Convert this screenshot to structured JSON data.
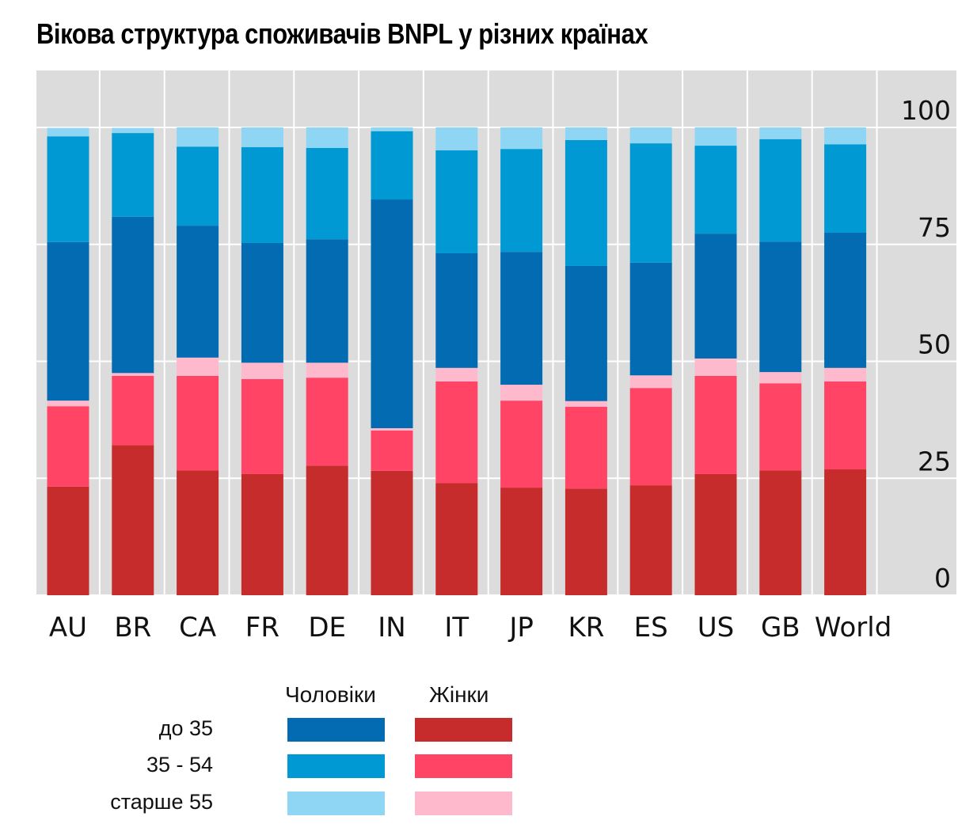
{
  "title": "Вікова структура споживачів BNPL у різних країнах",
  "legend": {
    "column_headers": [
      "Чоловіки",
      "Жінки"
    ],
    "row_labels": [
      "до 35",
      "35 - 54",
      "старше 55"
    ],
    "colors": {
      "men_under35": "#026bb1",
      "men_35_54": "#0099d3",
      "men_over55": "#8fd5f4",
      "women_under35": "#c62c2c",
      "women_35_54": "#ff4466",
      "women_over55": "#ffb9cd"
    }
  },
  "chart_data": {
    "type": "bar",
    "stacked": true,
    "title": "Вікова структура споживачів BNPL у різних країнах",
    "xlabel": "",
    "ylabel": "",
    "ylim": [
      0,
      100
    ],
    "yticks": [
      0,
      25,
      50,
      75,
      100
    ],
    "y_axis_side": "right",
    "grid": true,
    "legend_position": "bottom-left",
    "categories": [
      "AU",
      "BR",
      "CA",
      "FR",
      "DE",
      "IN",
      "IT",
      "JP",
      "KR",
      "ES",
      "US",
      "GB",
      "World"
    ],
    "series": [
      {
        "name": "Жінки до 35",
        "group": "Жінки",
        "age": "до 35",
        "color": "#c62c2c",
        "values": [
          23.2,
          32.1,
          26.7,
          25.9,
          27.7,
          26.6,
          24.0,
          23.0,
          22.8,
          23.5,
          25.9,
          26.7,
          26.9
        ]
      },
      {
        "name": "Жінки 35 - 54",
        "group": "Жінки",
        "age": "35 - 54",
        "color": "#ff4466",
        "values": [
          17.2,
          14.8,
          20.2,
          20.3,
          18.8,
          8.6,
          21.7,
          18.6,
          17.5,
          20.8,
          21.0,
          18.6,
          18.8
        ]
      },
      {
        "name": "Жінки старше 55",
        "group": "Жінки",
        "age": "старше 55",
        "color": "#ffb9cd",
        "values": [
          1.2,
          0.6,
          3.9,
          3.5,
          3.2,
          0.5,
          2.9,
          3.4,
          1.2,
          2.7,
          3.7,
          2.4,
          2.9
        ]
      },
      {
        "name": "Чоловіки до 35",
        "group": "Чоловіки",
        "age": "до 35",
        "color": "#026bb1",
        "values": [
          33.9,
          33.4,
          28.2,
          25.6,
          26.4,
          48.9,
          24.5,
          28.4,
          28.9,
          24.1,
          26.7,
          27.9,
          28.9
        ]
      },
      {
        "name": "Чоловіки 35 - 54",
        "group": "Чоловіки",
        "age": "35 - 54",
        "color": "#0099d3",
        "values": [
          22.6,
          17.9,
          16.9,
          20.5,
          19.5,
          14.6,
          22.0,
          22.0,
          26.9,
          25.5,
          18.8,
          21.9,
          18.9
        ]
      },
      {
        "name": "Чоловіки старше 55",
        "group": "Чоловіки",
        "age": "старше 55",
        "color": "#8fd5f4",
        "values": [
          1.8,
          1.1,
          4.1,
          4.2,
          4.4,
          0.8,
          4.9,
          4.6,
          2.7,
          3.4,
          3.9,
          2.5,
          3.6
        ]
      }
    ]
  }
}
